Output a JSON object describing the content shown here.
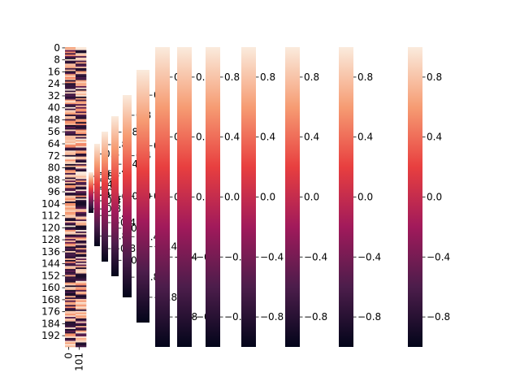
{
  "chart_data": {
    "type": "heatmap",
    "title": "",
    "xlabel": "",
    "ylabel": "",
    "heatmap": {
      "n_rows": 200,
      "n_cols": 2,
      "x_tick_labels": [
        "0",
        "101"
      ],
      "y_tick_labels": [
        "0",
        "8",
        "16",
        "24",
        "32",
        "40",
        "48",
        "56",
        "64",
        "72",
        "80",
        "88",
        "96",
        "104",
        "112",
        "120",
        "128",
        "136",
        "144",
        "152",
        "160",
        "168",
        "176",
        "184",
        "192"
      ],
      "value_range": [
        -1,
        1
      ],
      "colormap": "rocket"
    },
    "colorbars": [
      {
        "vmin": -1,
        "vmax": 1,
        "ticks": [
          "0.8",
          "0.4",
          "0.0",
          "−0.4",
          "−0.8"
        ]
      },
      {
        "vmin": -1,
        "vmax": 1,
        "ticks": [
          "0.8",
          "0.4",
          "0.0",
          "−0.4",
          "−0.8"
        ]
      },
      {
        "vmin": -1,
        "vmax": 1,
        "ticks": [
          "0.8",
          "0.4",
          "0.0",
          "−0.4",
          "−0.8"
        ]
      },
      {
        "vmin": -1,
        "vmax": 1,
        "ticks": [
          "0.8",
          "0.4",
          "0.0",
          "−0.4",
          "−0.8"
        ]
      },
      {
        "vmin": -1,
        "vmax": 1,
        "ticks": [
          "0.8",
          "0.4",
          "0.0",
          "−0.4",
          "−0.8"
        ]
      },
      {
        "vmin": -1,
        "vmax": 1,
        "ticks": [
          "0.8",
          "0.4",
          "0.0",
          "−0.4",
          "−0.8"
        ]
      },
      {
        "vmin": -1,
        "vmax": 1,
        "ticks": [
          "0.8",
          "0.4",
          "0.0",
          "−0.4",
          "−0.8"
        ]
      },
      {
        "vmin": -1,
        "vmax": 1,
        "ticks": [
          "0.8",
          "0.4",
          "0.0",
          "−0.4",
          "−0.8"
        ]
      },
      {
        "vmin": -1,
        "vmax": 1,
        "ticks": [
          "0.8",
          "0.4",
          "0.0",
          "−0.4",
          "−0.8"
        ]
      },
      {
        "vmin": -1,
        "vmax": 1,
        "ticks": [
          "0.8",
          "0.4",
          "0.0",
          "−0.4",
          "−0.8"
        ]
      },
      {
        "vmin": -1,
        "vmax": 1,
        "ticks": [
          "0.8",
          "0.4",
          "0.0",
          "−0.4",
          "−0.8"
        ]
      },
      {
        "vmin": -1,
        "vmax": 1,
        "ticks": [
          "0.8",
          "0.4",
          "0.0",
          "−0.4",
          "−0.8"
        ]
      },
      {
        "vmin": -1,
        "vmax": 1,
        "ticks": [
          "0.8",
          "0.4",
          "0.0",
          "−0.4",
          "−0.8"
        ]
      }
    ]
  },
  "colors": {
    "colormap_stops": [
      "#03051a",
      "#4c1d4b",
      "#a11a5b",
      "#e83f3f",
      "#f69c73",
      "#faebdd"
    ]
  }
}
